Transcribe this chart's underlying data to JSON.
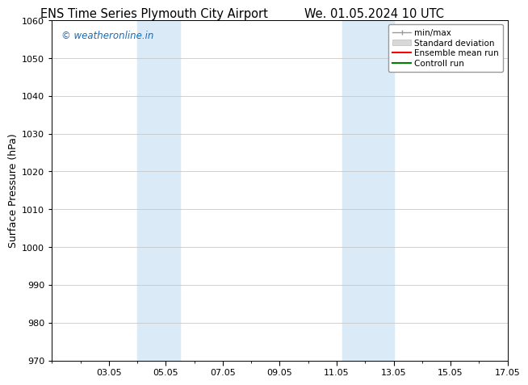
{
  "title_left": "ENS Time Series Plymouth City Airport",
  "title_right": "We. 01.05.2024 10 UTC",
  "ylabel": "Surface Pressure (hPa)",
  "ylim": [
    970,
    1060
  ],
  "yticks": [
    970,
    980,
    990,
    1000,
    1010,
    1020,
    1030,
    1040,
    1050,
    1060
  ],
  "xlim": [
    1.0,
    17.0
  ],
  "xtick_labels": [
    "03.05",
    "05.05",
    "07.05",
    "09.05",
    "11.05",
    "13.05",
    "15.05",
    "17.05"
  ],
  "xtick_positions": [
    3,
    5,
    7,
    9,
    11,
    13,
    15,
    17
  ],
  "shaded_regions": [
    {
      "x_start": 4.0,
      "x_end": 5.5,
      "color": "#daeaf7"
    },
    {
      "x_start": 11.2,
      "x_end": 13.0,
      "color": "#daeaf7"
    }
  ],
  "watermark": "© weatheronline.in",
  "watermark_color": "#1a6bb5",
  "background_color": "#ffffff",
  "grid_color": "#c8c8c8",
  "legend_items": [
    {
      "label": "min/max",
      "color": "#999999",
      "linestyle": "-",
      "linewidth": 1.0
    },
    {
      "label": "Standard deviation",
      "color": "#cccccc",
      "linestyle": "-",
      "linewidth": 6
    },
    {
      "label": "Ensemble mean run",
      "color": "#ff0000",
      "linestyle": "-",
      "linewidth": 1.5
    },
    {
      "label": "Controll run",
      "color": "#008000",
      "linestyle": "-",
      "linewidth": 1.5
    }
  ],
  "title_fontsize": 10.5,
  "axis_fontsize": 9,
  "tick_fontsize": 8,
  "watermark_fontsize": 8.5
}
